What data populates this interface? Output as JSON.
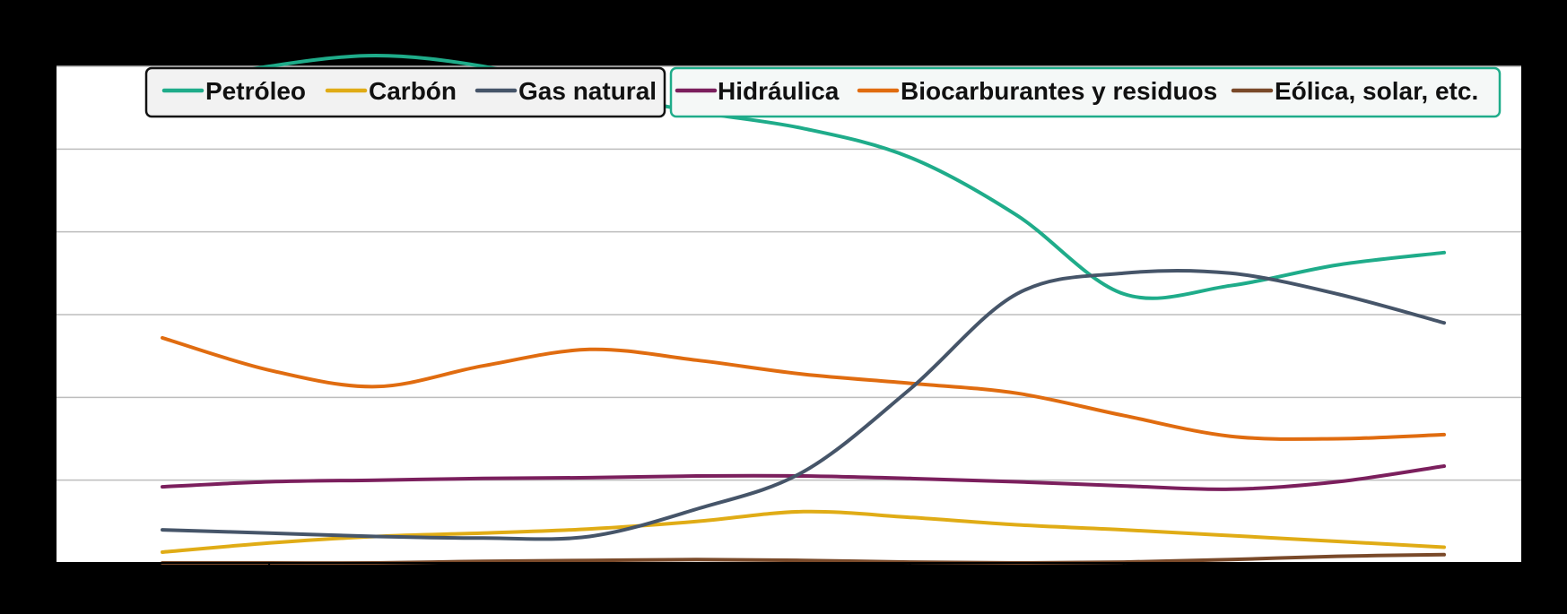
{
  "chart_data": {
    "type": "line",
    "title": "",
    "xlabel": "",
    "ylabel": "",
    "x": [
      1,
      2,
      3,
      4,
      5,
      6,
      7,
      8,
      9,
      10,
      11,
      12,
      13
    ],
    "ylim": [
      0,
      60
    ],
    "grid": true,
    "legend_position": "top",
    "series": [
      {
        "name": "Petróleo",
        "color": "#1fac8a",
        "values": [
          57.5,
          60.0,
          61.3,
          60.0,
          57.0,
          54.5,
          52.5,
          49.0,
          42.0,
          32.5,
          33.5,
          36.0,
          37.5
        ]
      },
      {
        "name": "Carbón",
        "color": "#e0ac16",
        "values": [
          1.3,
          2.4,
          3.2,
          3.6,
          4.1,
          5.0,
          6.2,
          5.5,
          4.6,
          4.0,
          3.3,
          2.6,
          1.9
        ]
      },
      {
        "name": "Gas natural",
        "color": "#465569",
        "values": [
          4.0,
          3.6,
          3.2,
          3.0,
          3.2,
          6.5,
          11.0,
          21.0,
          32.5,
          35.0,
          35.0,
          32.5,
          29.0
        ]
      },
      {
        "name": "Hidráulica",
        "color": "#7b1f5d",
        "values": [
          9.2,
          9.8,
          10.0,
          10.2,
          10.3,
          10.5,
          10.5,
          10.2,
          9.8,
          9.3,
          8.9,
          9.8,
          11.7
        ]
      },
      {
        "name": "Biocarburantes y residuos",
        "color": "#e06c10",
        "values": [
          27.2,
          23.3,
          21.3,
          23.8,
          25.8,
          24.5,
          22.8,
          21.7,
          20.5,
          17.8,
          15.3,
          15.0,
          15.5
        ]
      },
      {
        "name": "Eólica, solar, etc.",
        "color": "#7a4a2a",
        "values": [
          0.0,
          0.0,
          0.0,
          0.2,
          0.3,
          0.4,
          0.3,
          0.1,
          0.0,
          0.1,
          0.4,
          0.8,
          1.0
        ]
      }
    ]
  },
  "legend": {
    "group_a": [
      "Petróleo",
      "Carbón",
      "Gas natural"
    ],
    "group_b": [
      "Hidráulica",
      "Biocarburantes y residuos",
      "Eólica, solar, etc."
    ],
    "group_a_border": "#111111",
    "group_b_border": "#1fac8a"
  }
}
